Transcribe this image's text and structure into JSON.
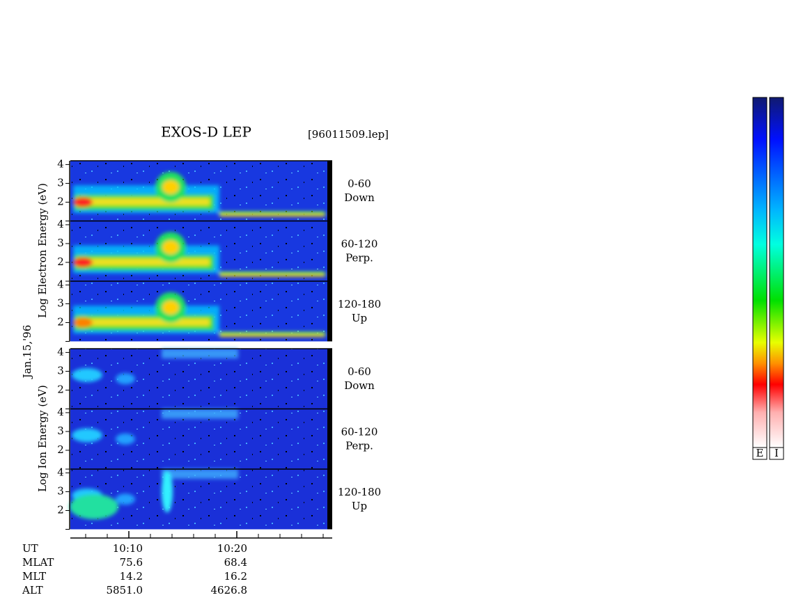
{
  "title": "EXOS-D LEP",
  "file": "[96011509.lep]",
  "date": "Jan.15,'96",
  "electron_axis_label": "Log Electron Energy (eV)",
  "ion_axis_label": "Log Ion Energy (eV)",
  "ylim": [
    1,
    4.2
  ],
  "yticks": [
    2,
    3,
    4
  ],
  "electron_panels": [
    {
      "angle": "0-60",
      "direction": "Down"
    },
    {
      "angle": "60-120",
      "direction": "Perp."
    },
    {
      "angle": "120-180",
      "direction": "Up"
    }
  ],
  "ion_panels": [
    {
      "angle": "0-60",
      "direction": "Down"
    },
    {
      "angle": "60-120",
      "direction": "Perp."
    },
    {
      "angle": "120-180",
      "direction": "Up"
    }
  ],
  "footer": [
    [
      "UT",
      "10:10",
      "10:20"
    ],
    [
      "MLAT",
      "75.6",
      "68.4"
    ],
    [
      "MLT",
      "14.2",
      "16.2"
    ],
    [
      "ALT",
      "5851.0",
      "4626.8"
    ]
  ],
  "colorbars": [
    "E",
    "I"
  ]
}
